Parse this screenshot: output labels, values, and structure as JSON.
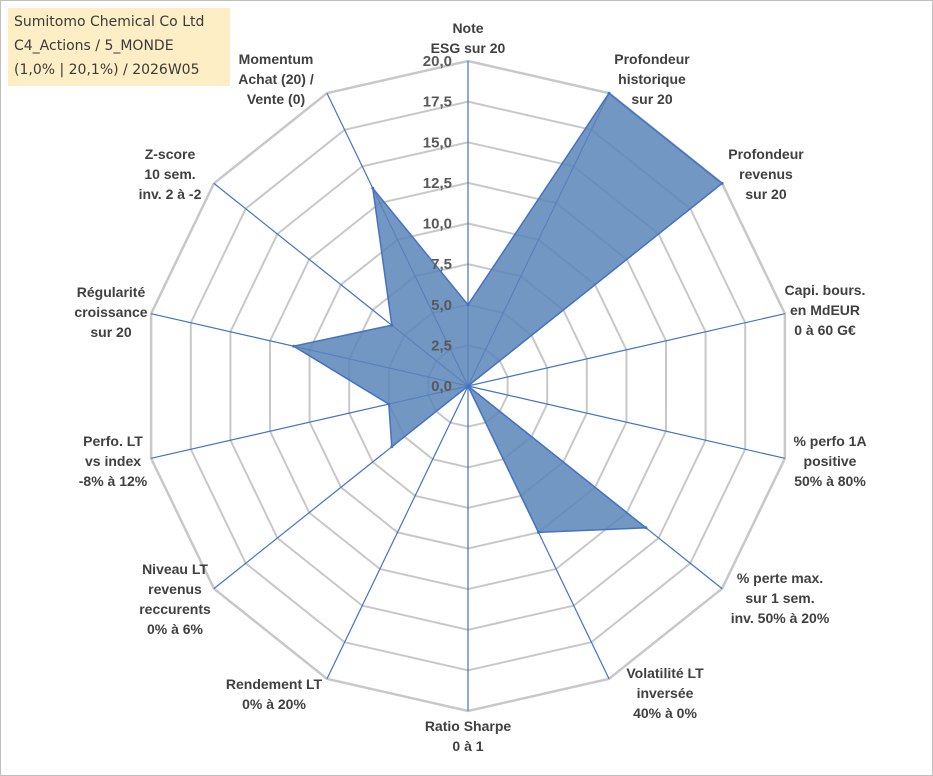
{
  "info": {
    "line1": "Sumitomo Chemical Co Ltd",
    "line2": "C4_Actions / 5_MONDE",
    "line3": "(1,0% | 20,1%) / 2026W05"
  },
  "colors": {
    "fill": "#5b85b8",
    "stroke": "#4472c4",
    "grid": "#c8c8c8",
    "spoke": "#4472c4"
  },
  "chart_data": {
    "type": "radar",
    "rmin": 0,
    "rmax": 20,
    "ticks": [
      "0,0",
      "2,5",
      "5,0",
      "7,5",
      "10,0",
      "12,5",
      "15,0",
      "17,5",
      "20,0"
    ],
    "categories": [
      {
        "lines": [
          "Note",
          "ESG sur 20"
        ],
        "value": 5
      },
      {
        "lines": [
          "Profondeur",
          "historique",
          "sur 20"
        ],
        "value": 20
      },
      {
        "lines": [
          "Profondeur",
          "revenus",
          "sur 20"
        ],
        "value": 20
      },
      {
        "lines": [
          "Capi. bours.",
          "en MdEUR",
          "0 à 60 G€"
        ],
        "value": 0
      },
      {
        "lines": [
          "% perfo 1A",
          "positive",
          "50% à 80%"
        ],
        "value": 0
      },
      {
        "lines": [
          "% perte max.",
          "sur 1 sem.",
          "inv. 50% à 20%"
        ],
        "value": 14
      },
      {
        "lines": [
          "Volatilité LT",
          "inversée",
          "40% à 0%"
        ],
        "value": 10
      },
      {
        "lines": [
          "Ratio Sharpe",
          "0 à 1"
        ],
        "value": 0
      },
      {
        "lines": [
          "Rendement LT",
          "0% à 20%"
        ],
        "value": 0
      },
      {
        "lines": [
          "Niveau LT",
          "revenus",
          "reccurents",
          "0% à 6%"
        ],
        "value": 6
      },
      {
        "lines": [
          "Perfo. LT",
          "vs index",
          "-8% à 12%"
        ],
        "value": 5
      },
      {
        "lines": [
          "Régularité",
          "croissance",
          "sur 20"
        ],
        "value": 11
      },
      {
        "lines": [
          "Z-score",
          "10 sem.",
          "inv. 2 à -2"
        ],
        "value": 6
      },
      {
        "lines": [
          "Momentum",
          "Achat (20) /",
          "Vente (0)"
        ],
        "value": 13.5
      }
    ]
  }
}
